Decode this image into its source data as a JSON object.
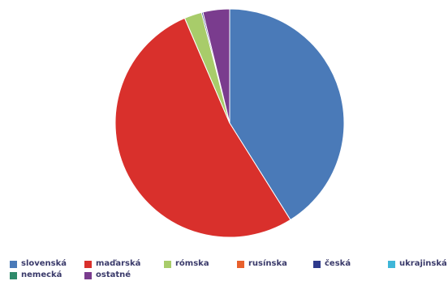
{
  "chart_data": {
    "type": "pie",
    "title": "",
    "start_angle_deg": 0,
    "direction": "clockwise",
    "slices": [
      {
        "label": "slovenská",
        "value": 41.5,
        "color": "#4a7ab8"
      },
      {
        "label": "maďarská",
        "value": 53.0,
        "color": "#d9302c"
      },
      {
        "label": "rómska",
        "value": 2.5,
        "color": "#a8cc6a"
      },
      {
        "label": "rusínska",
        "value": 0.0,
        "color": "#e8602c"
      },
      {
        "label": "česká",
        "value": 0.2,
        "color": "#2e3a8c"
      },
      {
        "label": "ukrajinská",
        "value": 0.0,
        "color": "#3fb6d8"
      },
      {
        "label": "nemecká",
        "value": 0.0,
        "color": "#2e8a6a"
      },
      {
        "label": "ostatné",
        "value": 3.8,
        "color": "#7a3c8e"
      }
    ],
    "legend": {
      "position": "bottom"
    }
  }
}
